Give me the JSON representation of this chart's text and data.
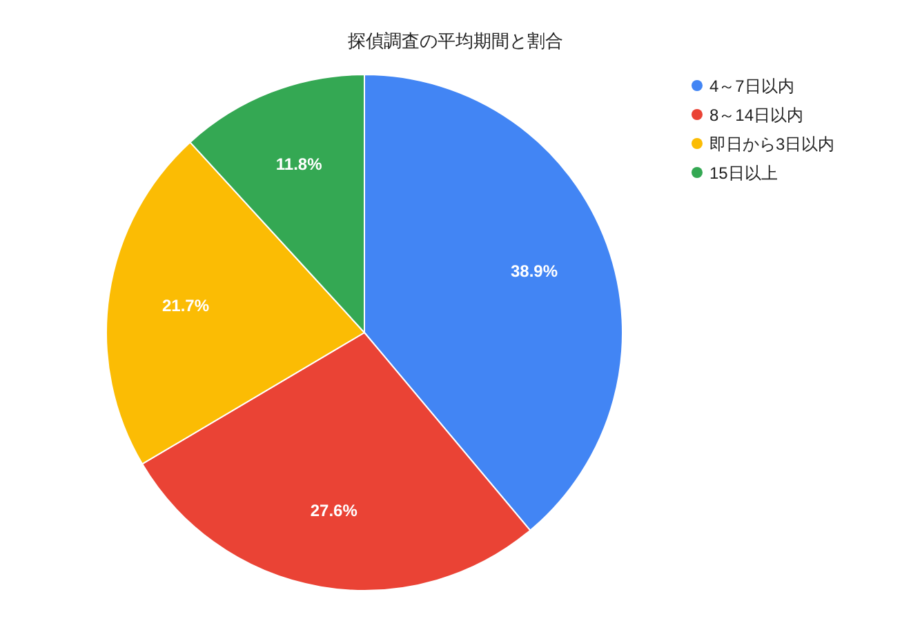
{
  "chart_data": {
    "type": "pie",
    "title": "探偵調査の平均期間と割合",
    "categories": [
      "4～7日以内",
      "8～14日以内",
      "即日から3日以内",
      "15日以上"
    ],
    "values": [
      38.9,
      27.6,
      21.7,
      11.8
    ],
    "value_labels": [
      "38.9%",
      "27.6%",
      "21.7%",
      "11.8%"
    ],
    "colors": [
      "#4285f4",
      "#ea4335",
      "#fbbc04",
      "#34a853"
    ],
    "legend": "top right"
  }
}
